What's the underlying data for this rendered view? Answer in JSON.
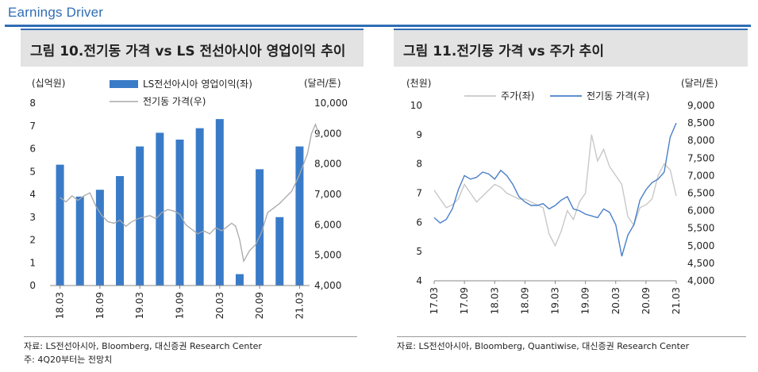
{
  "section_title": "Earnings Driver",
  "figure10": {
    "label": "그림 10.",
    "title": "전기동 가격 vs LS 전선아시아 영업이익 추이",
    "source": "자료: LS전선아시아, Bloomberg, 대신증권 Research Center",
    "note": "주: 4Q20부터는 전망치"
  },
  "figure11": {
    "label": "그림 11.",
    "title": "전기동 가격 vs 주가 추이",
    "source": "자료: LS전선아시아, Bloomberg, Quantiwise, 대신증권 Research Center"
  },
  "colors": {
    "accent": "#2f6db5",
    "bar": "#3a7bc8",
    "grey_line": "#a8a8a8",
    "light_grey_line": "#c8c8c8",
    "blue_line": "#4a7fc9"
  },
  "chart_data": [
    {
      "type": "bar",
      "left_unit": "(십억원)",
      "right_unit": "(달러/톤)",
      "y_left": {
        "min": 0,
        "max": 8,
        "ticks": [
          "0",
          "1",
          "2",
          "3",
          "4",
          "5",
          "6",
          "7",
          "8"
        ]
      },
      "y_right": {
        "min": 4000,
        "max": 10000,
        "ticks": [
          "4,000",
          "5,000",
          "6,000",
          "7,000",
          "8,000",
          "9,000",
          "10,000"
        ]
      },
      "x_ticks": [
        "18.03",
        "18.09",
        "19.03",
        "19.09",
        "20.03",
        "20.09",
        "21.03"
      ],
      "categories": [
        "1Q18",
        "2Q18",
        "3Q18",
        "4Q18",
        "1Q19",
        "2Q19",
        "3Q19",
        "4Q19",
        "1Q20",
        "2Q20",
        "3Q20",
        "4Q20",
        "1Q21"
      ],
      "series": [
        {
          "name": "LS전선아시아 영업이익(좌)",
          "kind": "bar",
          "axis": "left",
          "values": [
            5.3,
            3.9,
            4.2,
            4.8,
            6.1,
            6.7,
            6.4,
            6.9,
            7.3,
            0.5,
            5.1,
            3.0,
            6.1
          ]
        },
        {
          "name": "전기동 가격(우)",
          "kind": "line",
          "axis": "right",
          "x": [
            0,
            0.3,
            0.6,
            0.9,
            1.2,
            1.5,
            1.8,
            2.1,
            2.4,
            2.7,
            3.0,
            3.3,
            3.6,
            3.9,
            4.2,
            4.5,
            4.8,
            5.1,
            5.4,
            5.7,
            6.0,
            6.3,
            6.6,
            6.9,
            7.2,
            7.5,
            7.8,
            8.1,
            8.4,
            8.6,
            8.8,
            9.0,
            9.2,
            9.5,
            9.8,
            10.1,
            10.4,
            10.7,
            11.0,
            11.3,
            11.6,
            11.9,
            12.2,
            12.4,
            12.6,
            12.8,
            13.0
          ],
          "values": [
            6900,
            6750,
            6950,
            6800,
            6950,
            7050,
            6600,
            6300,
            6100,
            6050,
            6150,
            5950,
            6100,
            6200,
            6250,
            6300,
            6200,
            6400,
            6500,
            6450,
            6350,
            6000,
            5850,
            5700,
            5800,
            5700,
            5900,
            5800,
            5950,
            6050,
            5950,
            5500,
            4800,
            5150,
            5350,
            5750,
            6400,
            6550,
            6700,
            6900,
            7100,
            7500,
            8000,
            8350,
            9000,
            9300,
            8900
          ]
        }
      ]
    },
    {
      "type": "line",
      "left_unit": "(천원)",
      "right_unit": "(달러/톤)",
      "y_left": {
        "min": 4,
        "max": 10,
        "ticks": [
          "4",
          "5",
          "6",
          "7",
          "8",
          "9",
          "10"
        ]
      },
      "y_right": {
        "min": 4000,
        "max": 9000,
        "ticks": [
          "4,000",
          "4,500",
          "5,000",
          "5,500",
          "6,000",
          "6,500",
          "7,000",
          "7,500",
          "8,000",
          "8,500",
          "9,000"
        ]
      },
      "x_ticks": [
        "17.03",
        "17.09",
        "18.03",
        "18.09",
        "19.03",
        "19.09",
        "20.03",
        "20.09",
        "21.03"
      ],
      "series": [
        {
          "name": "주가(좌)",
          "axis": "left",
          "x": [
            0,
            0.2,
            0.4,
            0.6,
            0.8,
            1.0,
            1.2,
            1.4,
            1.6,
            1.8,
            2.0,
            2.2,
            2.4,
            2.6,
            2.8,
            3.0,
            3.2,
            3.4,
            3.6,
            3.8,
            4.0,
            4.2,
            4.4,
            4.6,
            4.8,
            5.0,
            5.2,
            5.4,
            5.6,
            5.8,
            6.0,
            6.2,
            6.4,
            6.6,
            6.8,
            7.0,
            7.2,
            7.4,
            7.6,
            7.8,
            8.0
          ],
          "values": [
            7.1,
            6.8,
            6.5,
            6.6,
            6.8,
            7.3,
            7.0,
            6.7,
            6.9,
            7.1,
            7.3,
            7.2,
            7.0,
            6.9,
            6.8,
            6.8,
            6.7,
            6.6,
            6.5,
            5.6,
            5.2,
            5.7,
            6.4,
            6.1,
            6.7,
            7.0,
            9.0,
            8.1,
            8.5,
            7.9,
            7.6,
            7.3,
            6.2,
            5.9,
            6.5,
            6.6,
            6.8,
            7.6,
            8.0,
            7.8,
            6.9
          ]
        },
        {
          "name": "전기동 가격(우)",
          "axis": "right",
          "x": [
            0,
            0.2,
            0.4,
            0.6,
            0.8,
            1.0,
            1.2,
            1.4,
            1.6,
            1.8,
            2.0,
            2.2,
            2.4,
            2.6,
            2.8,
            3.0,
            3.2,
            3.4,
            3.6,
            3.8,
            4.0,
            4.2,
            4.4,
            4.6,
            4.8,
            5.0,
            5.2,
            5.4,
            5.6,
            5.8,
            6.0,
            6.2,
            6.4,
            6.6,
            6.8,
            7.0,
            7.2,
            7.4,
            7.6,
            7.8,
            8.0
          ],
          "values": [
            5800,
            5650,
            5750,
            6050,
            6600,
            7000,
            6900,
            6950,
            7100,
            7050,
            6900,
            7150,
            7000,
            6750,
            6400,
            6250,
            6150,
            6150,
            6200,
            6050,
            6150,
            6300,
            6400,
            6050,
            6000,
            5900,
            5850,
            5800,
            6050,
            5950,
            5600,
            4700,
            5300,
            5600,
            6300,
            6600,
            6800,
            6900,
            7100,
            8100,
            8500
          ]
        }
      ]
    }
  ]
}
